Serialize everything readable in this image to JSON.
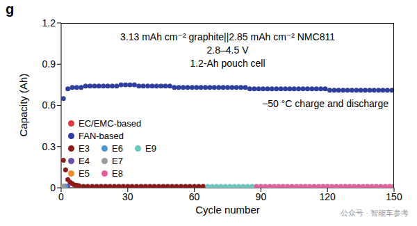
{
  "chart_data": {
    "type": "scatter",
    "panel_label": "g",
    "header": [
      "3.13 mAh cm⁻² graphite||2.85 mAh cm⁻² NMC811",
      "2.8–4.5 V",
      "1.2-Ah pouch cell"
    ],
    "annotation": "−50 °C charge and discharge",
    "watermark": "公众号 · 智能车参考",
    "x_label": "Cycle number",
    "y_label": "Capacity (Ah)",
    "xlim": [
      0,
      150
    ],
    "xticks": [
      0,
      30,
      60,
      90,
      120,
      150
    ],
    "ylim": [
      0,
      1.2
    ],
    "yticks": [
      0,
      {
        "value": 0.3,
        "label": "0.3"
      },
      {
        "value": 0.6,
        "label": "0.6"
      },
      {
        "value": 0.9,
        "label": "0.9"
      },
      {
        "value": 1.2,
        "label": "1.2"
      }
    ],
    "grid": false,
    "legend": "lower left",
    "marker": "circle",
    "series": [
      {
        "name": "EC/EMC-based",
        "color": "#e0393e",
        "x": [
          1,
          2,
          3
        ],
        "values": [
          0.01,
          0.01,
          0.01
        ]
      },
      {
        "name": "FAN-based",
        "color": "#2e3f9e",
        "x": [
          1,
          3,
          5,
          7,
          9,
          11,
          13,
          15,
          17,
          19,
          21,
          23,
          25,
          27,
          29,
          31,
          33,
          35,
          37,
          39,
          41,
          43,
          45,
          47,
          49,
          51,
          53,
          55,
          57,
          59,
          61,
          63,
          65,
          67,
          69,
          71,
          73,
          75,
          77,
          79,
          81,
          83,
          85,
          87,
          89,
          91,
          93,
          95,
          97,
          99,
          101,
          103,
          105,
          107,
          109,
          111,
          113,
          115,
          117,
          119,
          121,
          123,
          125,
          127,
          129,
          131,
          133,
          135,
          137,
          139,
          141,
          143,
          145,
          147,
          149
        ],
        "values": [
          0.65,
          0.72,
          0.73,
          0.73,
          0.73,
          0.74,
          0.74,
          0.74,
          0.74,
          0.74,
          0.74,
          0.74,
          0.74,
          0.75,
          0.75,
          0.75,
          0.75,
          0.74,
          0.74,
          0.74,
          0.74,
          0.74,
          0.74,
          0.74,
          0.74,
          0.73,
          0.73,
          0.73,
          0.73,
          0.73,
          0.73,
          0.73,
          0.73,
          0.73,
          0.73,
          0.73,
          0.73,
          0.73,
          0.73,
          0.73,
          0.73,
          0.73,
          0.72,
          0.72,
          0.72,
          0.72,
          0.72,
          0.72,
          0.72,
          0.72,
          0.72,
          0.72,
          0.72,
          0.72,
          0.72,
          0.72,
          0.72,
          0.72,
          0.72,
          0.72,
          0.71,
          0.71,
          0.71,
          0.71,
          0.71,
          0.71,
          0.71,
          0.71,
          0.71,
          0.71,
          0.71,
          0.71,
          0.71,
          0.71,
          0.71
        ]
      },
      {
        "name": "E3",
        "color": "#8b1a1a",
        "x": [
          1,
          2,
          3,
          4,
          5,
          6,
          7,
          8,
          10,
          12,
          14,
          16,
          18,
          20,
          22,
          24,
          26,
          28,
          30,
          32,
          34,
          36,
          38,
          40,
          42,
          44,
          46,
          48,
          50,
          52,
          54,
          56,
          58,
          60,
          62,
          64
        ],
        "values": [
          0.2,
          0.13,
          0.06,
          0.04,
          0.03,
          0.02,
          0.018,
          0.015,
          0.01,
          0.01,
          0.01,
          0.01,
          0.01,
          0.01,
          0.01,
          0.01,
          0.01,
          0.01,
          0.01,
          0.01,
          0.01,
          0.01,
          0.01,
          0.01,
          0.01,
          0.01,
          0.01,
          0.01,
          0.01,
          0.01,
          0.01,
          0.01,
          0.01,
          0.01,
          0.01,
          0.01
        ]
      },
      {
        "name": "E4",
        "color": "#6a4fa8",
        "x": [
          2,
          3
        ],
        "values": [
          0.01,
          0.01
        ]
      },
      {
        "name": "E5",
        "color": "#f08a30",
        "x": [
          1
        ],
        "values": [
          0.01
        ]
      },
      {
        "name": "E6",
        "color": "#4f97d1",
        "x": [
          1,
          2
        ],
        "values": [
          0.01,
          0.01
        ]
      },
      {
        "name": "E7",
        "color": "#9a9a9a",
        "x": [
          1
        ],
        "values": [
          0.01
        ]
      },
      {
        "name": "E8",
        "color": "#e0609a",
        "x": [
          88,
          90,
          92,
          94,
          96,
          98,
          100,
          102,
          104,
          106,
          108,
          110,
          112,
          114,
          116,
          118,
          120,
          122,
          124,
          126,
          128,
          130,
          132,
          134,
          136,
          138,
          140,
          142,
          144,
          146,
          148,
          150
        ],
        "values": [
          0.01,
          0.01,
          0.01,
          0.01,
          0.01,
          0.01,
          0.01,
          0.01,
          0.01,
          0.01,
          0.01,
          0.01,
          0.01,
          0.01,
          0.01,
          0.01,
          0.01,
          0.01,
          0.01,
          0.01,
          0.01,
          0.01,
          0.01,
          0.01,
          0.01,
          0.01,
          0.01,
          0.01,
          0.01,
          0.01,
          0.01,
          0.01
        ]
      },
      {
        "name": "E9",
        "color": "#6cc7c0",
        "x": [
          66,
          68,
          70,
          72,
          74,
          76,
          78,
          80,
          82,
          84,
          86
        ],
        "values": [
          0.01,
          0.01,
          0.01,
          0.01,
          0.01,
          0.01,
          0.01,
          0.01,
          0.01,
          0.01,
          0.01
        ]
      }
    ]
  }
}
